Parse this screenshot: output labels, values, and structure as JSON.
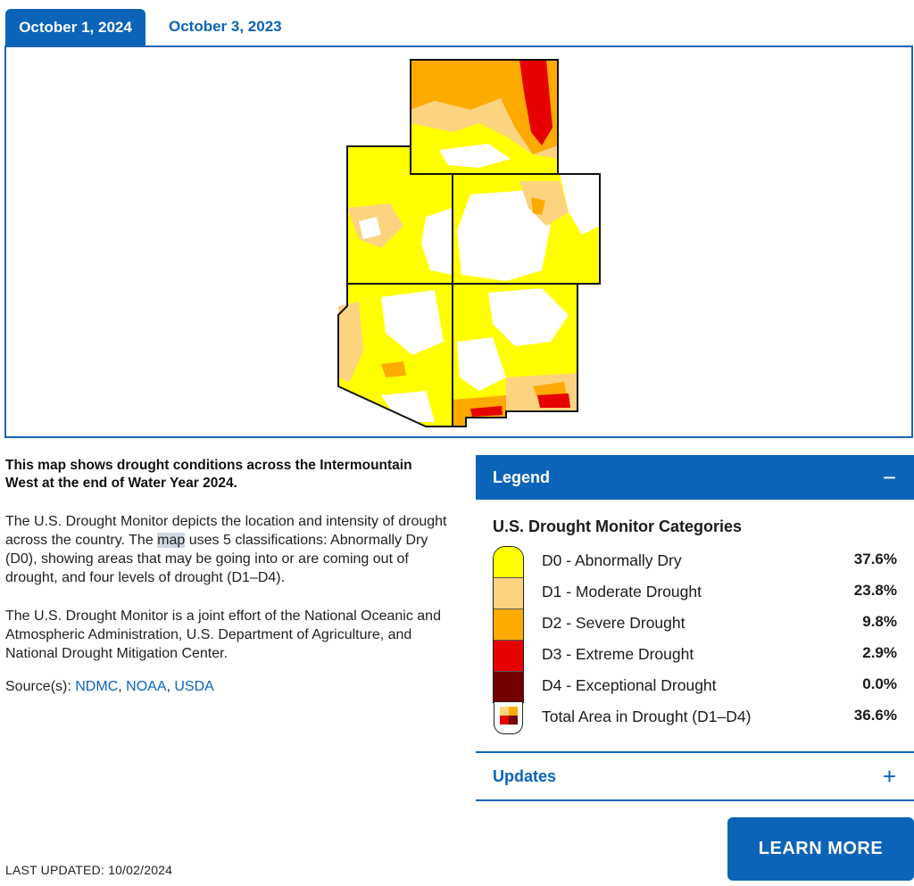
{
  "tabs": [
    {
      "label": "October 1, 2024",
      "active": true
    },
    {
      "label": "October 3, 2023",
      "active": false
    }
  ],
  "intro": "This map shows drought conditions across the Intermountain West at the end of Water Year 2024.",
  "para1": {
    "before": "The U.S. Drought Monitor depicts the location and intensity of drought across the country. The ",
    "highlight": "map",
    "after": " uses 5 classifications: Abnormally Dry (D0), showing areas that may be going into or are coming out of drought, and four levels of drought (D1–D4)."
  },
  "para2": "The U.S. Drought Monitor is a joint effort of the National Oceanic and Atmospheric Administration, U.S. Department of Agriculture, and National Drought Mitigation Center.",
  "sources": {
    "label": "Source(s):",
    "links": [
      "NDMC",
      "NOAA",
      "USDA"
    ]
  },
  "legend": {
    "header": "Legend",
    "toggle": "−",
    "title": "U.S. Drought Monitor Categories",
    "rows": [
      {
        "label": "D0 - Abnormally Dry",
        "value": "37.6%",
        "color": "#ffff00"
      },
      {
        "label": "D1 - Moderate Drought",
        "value": "23.8%",
        "color": "#fcd37f"
      },
      {
        "label": "D2 - Severe Drought",
        "value": "9.8%",
        "color": "#ffaa00"
      },
      {
        "label": "D3 - Extreme Drought",
        "value": "2.9%",
        "color": "#e60000"
      },
      {
        "label": "D4 - Exceptional Drought",
        "value": "0.0%",
        "color": "#730000"
      }
    ],
    "total": {
      "label": "Total Area in Drought (D1–D4)",
      "value": "36.6%"
    }
  },
  "updates": {
    "label": "Updates",
    "toggle": "+"
  },
  "cta": "LEARN MORE",
  "last_updated": "LAST UPDATED: 10/02/2024",
  "colors": {
    "accent": "#0b64b8",
    "d0": "#ffff00",
    "d1": "#fcd37f",
    "d2": "#ffaa00",
    "d3": "#e60000",
    "d4": "#730000"
  }
}
